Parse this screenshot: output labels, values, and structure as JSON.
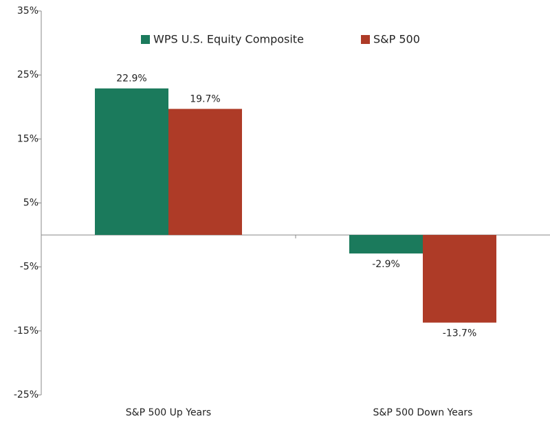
{
  "chart_data": {
    "type": "bar",
    "categories": [
      "S&P 500 Up Years",
      "S&P 500 Down Years"
    ],
    "series": [
      {
        "name": "WPS U.S. Equity Composite",
        "color": "#1b7a5c",
        "values": [
          22.9,
          -2.9
        ],
        "value_labels": [
          "22.9%",
          "-2.9%"
        ]
      },
      {
        "name": "S&P 500",
        "color": "#ae3b27",
        "values": [
          19.7,
          -13.7
        ],
        "value_labels": [
          "19.7%",
          "-13.7%"
        ]
      }
    ],
    "ylim": [
      -25,
      35
    ],
    "yticks": [
      {
        "value": 35,
        "label": "35%"
      },
      {
        "value": 25,
        "label": "25%"
      },
      {
        "value": 15,
        "label": "15%"
      },
      {
        "value": 5,
        "label": "5%"
      },
      {
        "value": -5,
        "label": "-5%"
      },
      {
        "value": -15,
        "label": "-15%"
      },
      {
        "value": -25,
        "label": "-25%"
      }
    ],
    "grid": false,
    "legend": "top"
  }
}
